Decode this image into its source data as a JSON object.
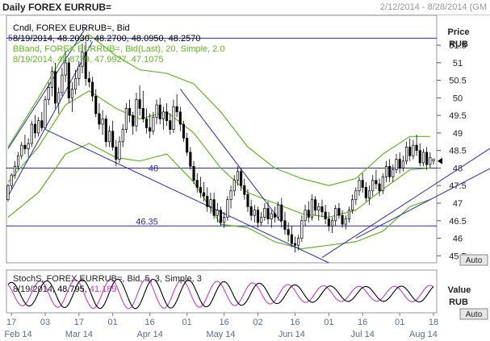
{
  "window": {
    "title": "Daily FOREX EURRUB=",
    "date_range": "2/12/2014 - 8/28/2014 (GM"
  },
  "colors": {
    "candle": "#000000",
    "bband": "#5fb81e",
    "trendline": "#2a2ab8",
    "stoch_k": "#000000",
    "stoch_d": "#c63bc6",
    "grid": "#7ea0b8"
  },
  "chart_data": [
    {
      "type": "candlestick",
      "name": "price-panel",
      "legend": [
        {
          "text": "Cndl, FOREX EURRUB=, Bid"
        },
        {
          "text": "8/19/2014, 48.2030, 48.2700, 48.0950, 48.2570"
        },
        {
          "text": "BBand, FOREX EURRUB=, Bid(Last), 20, Simple, 2.0"
        },
        {
          "text": "8/19/2014, 48.8779, 47.9927, 47.1075"
        }
      ],
      "y_axis_title": [
        "Price",
        "RUB"
      ],
      "y_ticks": [
        45.5,
        46,
        46.5,
        47,
        47.5,
        48,
        48.5,
        49,
        49.5,
        50,
        50.5,
        51,
        51.5
      ],
      "y_tick_labels": [
        "45.5",
        "46",
        "46.5",
        "47",
        "47.5",
        "48",
        "48.5",
        "49",
        "49.5",
        "50",
        "50.5",
        "51",
        "51.5"
      ],
      "ylim": [
        45.3,
        52.1
      ],
      "horizontal_lines": [
        {
          "value": 51.7,
          "label": "5"
        },
        {
          "value": 48.0,
          "label": "48"
        },
        {
          "value": 46.35,
          "label": "46.35"
        }
      ],
      "current_marker": 48.2,
      "trendlines": [
        {
          "x1": 1,
          "y1": 47.2,
          "x2": 26,
          "y2": 51.6
        },
        {
          "x1": 1,
          "y1": 48.55,
          "x2": 24,
          "y2": 52.0
        },
        {
          "x1": 12,
          "y1": 49.1,
          "x2": 96,
          "y2": 45.3
        },
        {
          "x1": 52,
          "y1": 50.25,
          "x2": 82,
          "y2": 46.45
        },
        {
          "x1": 94,
          "y1": 45.45,
          "x2": 146,
          "y2": 48.7
        },
        {
          "x1": 104,
          "y1": 46.0,
          "x2": 146,
          "y2": 48.1
        }
      ],
      "axis_button": "Auto",
      "candles": [
        [
          1,
          47.1,
          47.55,
          47.05,
          47.5
        ],
        [
          2,
          47.5,
          47.85,
          47.4,
          47.8
        ],
        [
          3,
          47.8,
          48.2,
          47.7,
          48.05
        ],
        [
          4,
          48.05,
          48.45,
          47.95,
          48.35
        ],
        [
          5,
          48.35,
          48.75,
          48.25,
          48.65
        ],
        [
          6,
          48.65,
          48.95,
          48.4,
          48.55
        ],
        [
          7,
          48.55,
          48.85,
          48.3,
          48.7
        ],
        [
          8,
          48.7,
          49.35,
          48.6,
          49.25
        ],
        [
          9,
          49.25,
          49.5,
          48.85,
          49.0
        ],
        [
          10,
          49.0,
          49.45,
          48.9,
          49.35
        ],
        [
          11,
          49.35,
          49.6,
          49.05,
          49.15
        ],
        [
          12,
          49.15,
          50.05,
          49.1,
          49.95
        ],
        [
          13,
          49.95,
          50.45,
          49.8,
          50.3
        ],
        [
          14,
          50.3,
          50.9,
          50.05,
          50.75
        ],
        [
          15,
          50.75,
          51.0,
          49.7,
          49.85
        ],
        [
          16,
          49.85,
          50.3,
          49.55,
          50.15
        ],
        [
          17,
          50.15,
          50.85,
          50.05,
          50.65
        ],
        [
          18,
          50.65,
          51.3,
          50.45,
          51.0
        ],
        [
          19,
          51.0,
          51.15,
          49.85,
          50.0
        ],
        [
          20,
          50.0,
          50.45,
          49.6,
          50.25
        ],
        [
          21,
          50.25,
          50.8,
          50.1,
          50.55
        ],
        [
          22,
          50.55,
          51.05,
          50.35,
          50.9
        ],
        [
          23,
          50.9,
          51.55,
          50.7,
          51.3
        ],
        [
          24,
          51.3,
          51.6,
          50.35,
          50.55
        ],
        [
          25,
          50.55,
          50.75,
          50.3,
          50.45
        ],
        [
          26,
          50.45,
          50.6,
          49.9,
          50.05
        ],
        [
          27,
          50.05,
          50.25,
          49.45,
          49.55
        ],
        [
          28,
          49.55,
          49.85,
          49.1,
          49.25
        ],
        [
          29,
          49.25,
          49.65,
          48.95,
          49.4
        ],
        [
          30,
          49.4,
          49.5,
          48.6,
          48.75
        ],
        [
          31,
          48.75,
          49.2,
          48.6,
          49.05
        ],
        [
          32,
          49.05,
          49.35,
          48.5,
          48.6
        ],
        [
          33,
          48.6,
          48.8,
          48.05,
          48.25
        ],
        [
          34,
          48.25,
          48.9,
          48.15,
          48.75
        ],
        [
          35,
          48.75,
          49.25,
          48.6,
          49.1
        ],
        [
          36,
          49.1,
          49.85,
          49.0,
          49.7
        ],
        [
          37,
          49.7,
          49.95,
          49.3,
          49.5
        ],
        [
          38,
          49.5,
          49.6,
          48.95,
          49.2
        ],
        [
          39,
          49.2,
          50.15,
          49.05,
          49.95
        ],
        [
          40,
          49.95,
          50.35,
          49.5,
          49.7
        ],
        [
          41,
          49.7,
          50.2,
          49.3,
          49.4
        ],
        [
          42,
          49.4,
          49.7,
          49.0,
          49.15
        ],
        [
          43,
          49.15,
          49.55,
          48.85,
          49.05
        ],
        [
          44,
          49.05,
          49.6,
          48.95,
          49.45
        ],
        [
          45,
          49.45,
          49.95,
          49.25,
          49.8
        ],
        [
          46,
          49.8,
          50.0,
          49.25,
          49.4
        ],
        [
          47,
          49.4,
          49.75,
          49.1,
          49.6
        ],
        [
          48,
          49.6,
          49.85,
          49.2,
          49.35
        ],
        [
          49,
          49.35,
          49.55,
          48.95,
          49.1
        ],
        [
          50,
          49.1,
          49.95,
          49.0,
          49.75
        ],
        [
          51,
          49.75,
          50.1,
          49.45,
          49.6
        ],
        [
          52,
          49.6,
          49.75,
          49.05,
          49.25
        ],
        [
          53,
          49.25,
          49.35,
          48.75,
          48.85
        ],
        [
          54,
          48.85,
          49.0,
          48.35,
          48.45
        ],
        [
          55,
          48.45,
          48.6,
          47.95,
          48.05
        ],
        [
          56,
          48.05,
          48.2,
          47.55,
          47.65
        ],
        [
          57,
          47.65,
          47.85,
          47.3,
          47.45
        ],
        [
          58,
          47.45,
          47.75,
          47.15,
          47.3
        ],
        [
          59,
          47.3,
          47.6,
          47.05,
          47.2
        ],
        [
          60,
          47.2,
          47.45,
          46.75,
          46.9
        ],
        [
          61,
          46.9,
          47.3,
          46.7,
          47.1
        ],
        [
          62,
          47.1,
          47.3,
          46.55,
          46.65
        ],
        [
          63,
          46.65,
          47.0,
          46.45,
          46.8
        ],
        [
          64,
          46.8,
          46.9,
          46.35,
          46.45
        ],
        [
          65,
          46.45,
          46.75,
          46.3,
          46.6
        ],
        [
          66,
          46.6,
          47.2,
          46.5,
          47.1
        ],
        [
          67,
          47.1,
          47.5,
          46.85,
          47.35
        ],
        [
          68,
          47.35,
          47.8,
          47.2,
          47.65
        ],
        [
          69,
          47.65,
          48.05,
          47.5,
          47.9
        ],
        [
          70,
          47.9,
          48.0,
          47.35,
          47.5
        ],
        [
          71,
          47.5,
          47.7,
          47.1,
          47.25
        ],
        [
          72,
          47.25,
          47.4,
          46.75,
          46.9
        ],
        [
          73,
          46.9,
          47.1,
          46.5,
          46.65
        ],
        [
          74,
          46.65,
          46.95,
          46.45,
          46.8
        ],
        [
          75,
          46.8,
          46.9,
          46.3,
          46.45
        ],
        [
          76,
          46.45,
          46.75,
          46.35,
          46.6
        ],
        [
          77,
          46.6,
          47.0,
          46.5,
          46.85
        ],
        [
          78,
          46.85,
          47.05,
          46.4,
          46.55
        ],
        [
          79,
          46.55,
          46.8,
          46.3,
          46.7
        ],
        [
          80,
          46.7,
          46.9,
          46.45,
          46.6
        ],
        [
          81,
          46.6,
          47.05,
          46.5,
          46.95
        ],
        [
          82,
          46.95,
          47.15,
          46.3,
          46.5
        ],
        [
          83,
          46.5,
          46.75,
          46.1,
          46.25
        ],
        [
          84,
          46.25,
          46.45,
          45.9,
          46.1
        ],
        [
          85,
          46.1,
          46.35,
          45.75,
          45.85
        ],
        [
          86,
          45.85,
          46.05,
          45.6,
          45.8
        ],
        [
          87,
          45.8,
          46.1,
          45.65,
          46.0
        ],
        [
          88,
          46.0,
          46.65,
          45.9,
          46.5
        ],
        [
          89,
          46.5,
          46.95,
          46.35,
          46.8
        ],
        [
          90,
          46.8,
          47.05,
          46.45,
          46.6
        ],
        [
          91,
          46.6,
          47.25,
          46.5,
          47.1
        ],
        [
          92,
          47.1,
          47.2,
          46.65,
          46.8
        ],
        [
          93,
          46.8,
          47.0,
          46.5,
          46.9
        ],
        [
          94,
          46.9,
          47.1,
          46.6,
          46.75
        ],
        [
          95,
          46.75,
          46.95,
          46.4,
          46.55
        ],
        [
          96,
          46.55,
          46.75,
          46.2,
          46.35
        ],
        [
          97,
          46.35,
          46.6,
          46.15,
          46.5
        ],
        [
          98,
          46.5,
          46.95,
          46.35,
          46.85
        ],
        [
          99,
          46.85,
          47.0,
          46.55,
          46.65
        ],
        [
          100,
          46.65,
          46.8,
          46.3,
          46.4
        ],
        [
          101,
          46.4,
          46.65,
          46.25,
          46.55
        ],
        [
          102,
          46.55,
          46.9,
          46.45,
          46.8
        ],
        [
          103,
          46.8,
          47.25,
          46.7,
          47.1
        ],
        [
          104,
          47.1,
          47.45,
          46.95,
          47.35
        ],
        [
          105,
          47.35,
          47.75,
          47.2,
          47.65
        ],
        [
          106,
          47.65,
          47.85,
          47.3,
          47.45
        ],
        [
          107,
          47.45,
          47.6,
          47.05,
          47.15
        ],
        [
          108,
          47.15,
          47.5,
          46.95,
          47.35
        ],
        [
          109,
          47.35,
          47.8,
          47.2,
          47.65
        ],
        [
          110,
          47.65,
          47.95,
          47.4,
          47.55
        ],
        [
          111,
          47.55,
          47.7,
          47.2,
          47.35
        ],
        [
          112,
          47.35,
          47.85,
          47.25,
          47.75
        ],
        [
          113,
          47.75,
          48.2,
          47.6,
          48.05
        ],
        [
          114,
          48.05,
          48.25,
          47.6,
          47.75
        ],
        [
          115,
          47.75,
          48.1,
          47.6,
          47.95
        ],
        [
          116,
          47.95,
          48.4,
          47.85,
          48.25
        ],
        [
          117,
          48.25,
          48.45,
          47.85,
          48.0
        ],
        [
          118,
          48.0,
          48.35,
          47.9,
          48.2
        ],
        [
          119,
          48.2,
          48.75,
          48.1,
          48.6
        ],
        [
          120,
          48.6,
          48.85,
          48.2,
          48.35
        ],
        [
          121,
          48.35,
          48.8,
          48.25,
          48.65
        ],
        [
          122,
          48.65,
          48.95,
          48.35,
          48.5
        ],
        [
          123,
          48.5,
          48.7,
          48.05,
          48.15
        ],
        [
          124,
          48.15,
          48.55,
          48.05,
          48.45
        ],
        [
          125,
          48.45,
          48.6,
          47.95,
          48.1
        ],
        [
          126,
          48.1,
          48.45,
          48.0,
          48.3
        ],
        [
          127,
          48.2,
          48.27,
          48.1,
          48.26
        ]
      ],
      "bband_upper": [
        [
          1,
          48.6
        ],
        [
          10,
          50.0
        ],
        [
          18,
          51.3
        ],
        [
          25,
          51.8
        ],
        [
          33,
          51.2
        ],
        [
          40,
          50.8
        ],
        [
          48,
          50.7
        ],
        [
          56,
          50.4
        ],
        [
          64,
          49.6
        ],
        [
          72,
          48.6
        ],
        [
          80,
          48.0
        ],
        [
          88,
          47.7
        ],
        [
          96,
          47.5
        ],
        [
          104,
          47.7
        ],
        [
          112,
          48.4
        ],
        [
          120,
          48.9
        ],
        [
          126,
          48.9
        ]
      ],
      "bband_middle": [
        [
          1,
          47.6
        ],
        [
          10,
          48.6
        ],
        [
          18,
          49.8
        ],
        [
          25,
          50.2
        ],
        [
          33,
          49.7
        ],
        [
          40,
          49.4
        ],
        [
          48,
          49.6
        ],
        [
          56,
          49.0
        ],
        [
          64,
          48.0
        ],
        [
          72,
          47.3
        ],
        [
          80,
          47.0
        ],
        [
          88,
          46.7
        ],
        [
          96,
          46.6
        ],
        [
          104,
          46.8
        ],
        [
          112,
          47.4
        ],
        [
          120,
          47.95
        ],
        [
          126,
          48.0
        ]
      ],
      "bband_lower": [
        [
          1,
          46.6
        ],
        [
          10,
          47.3
        ],
        [
          18,
          48.4
        ],
        [
          25,
          48.7
        ],
        [
          33,
          48.3
        ],
        [
          40,
          48.2
        ],
        [
          48,
          48.4
        ],
        [
          56,
          47.6
        ],
        [
          64,
          46.4
        ],
        [
          72,
          46.3
        ],
        [
          80,
          45.9
        ],
        [
          88,
          45.7
        ],
        [
          96,
          45.8
        ],
        [
          104,
          45.9
        ],
        [
          112,
          46.2
        ],
        [
          120,
          46.9
        ],
        [
          126,
          47.1
        ]
      ]
    },
    {
      "type": "line",
      "name": "stochastics-panel",
      "legend": [
        {
          "text": "StochS, FOREX EURRUB=, Bid,  5, 3, Simple, 3"
        },
        {
          "text": "8/19/2014, ",
          "parts": [
            {
              "text": "48.795, ",
              "color": "#000000"
            },
            {
              "text": "41.189",
              "color": "#c63bc6"
            }
          ]
        }
      ],
      "y_axis_title": [
        "Value",
        "RUB"
      ],
      "ylim": [
        0,
        100
      ],
      "axis_button": "Auto",
      "series": [
        {
          "values_k": "computed-osc",
          "period": 10.5,
          "phase": 0.4
        },
        {
          "values_d": "computed-osc",
          "period": 10.5,
          "phase": 1.6
        }
      ]
    }
  ],
  "x_axis": {
    "day_ticks": [
      {
        "x": 2,
        "label": "17"
      },
      {
        "x": 12,
        "label": "03"
      },
      {
        "x": 22,
        "label": "17"
      },
      {
        "x": 32,
        "label": "01"
      },
      {
        "x": 43,
        "label": "16"
      },
      {
        "x": 54,
        "label": "01"
      },
      {
        "x": 65,
        "label": "16"
      },
      {
        "x": 75,
        "label": "02"
      },
      {
        "x": 86,
        "label": "16"
      },
      {
        "x": 96,
        "label": "01"
      },
      {
        "x": 106,
        "label": "16"
      },
      {
        "x": 117,
        "label": "01"
      },
      {
        "x": 127,
        "label": "18"
      }
    ],
    "month_labels": [
      {
        "x": 4,
        "label": "Feb 14"
      },
      {
        "x": 22,
        "label": "Mar 14"
      },
      {
        "x": 43,
        "label": "Apr 14"
      },
      {
        "x": 64,
        "label": "May 14"
      },
      {
        "x": 85,
        "label": "Jun 14"
      },
      {
        "x": 106,
        "label": "Jul 14"
      },
      {
        "x": 124,
        "label": "Aug 14"
      }
    ]
  }
}
